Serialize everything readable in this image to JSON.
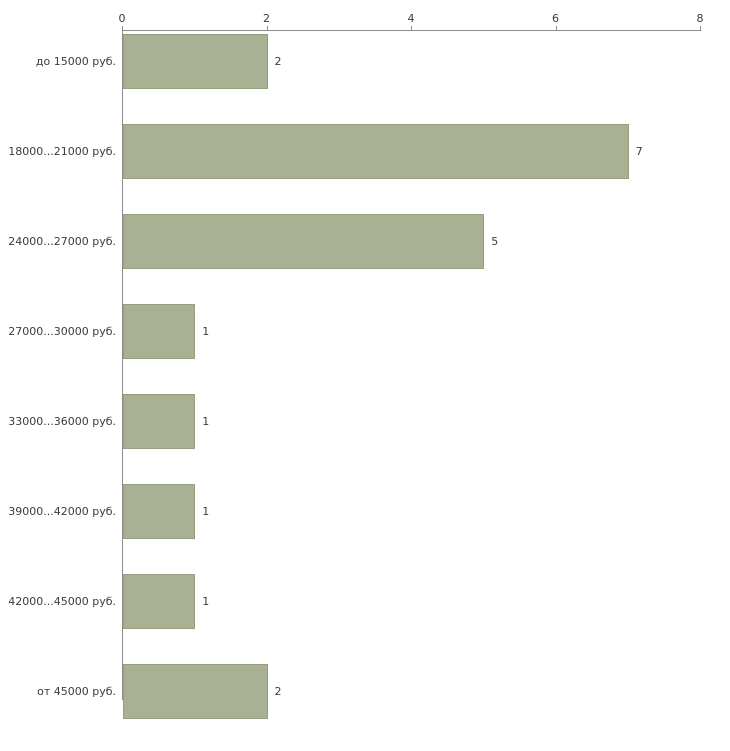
{
  "chart_data": {
    "type": "bar",
    "orientation": "horizontal",
    "title": "",
    "xlabel": "",
    "ylabel": "",
    "categories": [
      "до 15000 руб.",
      "18000...21000 руб.",
      "24000...27000 руб.",
      "27000...30000 руб.",
      "33000...36000 руб.",
      "39000...42000 руб.",
      "42000...45000 руб.",
      "от 45000 руб."
    ],
    "values": [
      2,
      7,
      5,
      1,
      1,
      1,
      1,
      2
    ],
    "value_labels": [
      "2",
      "7",
      "5",
      "1",
      "1",
      "1",
      "1",
      "2"
    ],
    "xlim": [
      0,
      8
    ],
    "xticks": [
      0,
      2,
      4,
      6,
      8
    ],
    "axis_position": "top",
    "grid": "off",
    "legend": "off",
    "bar_color": "#a9b195",
    "bar_border_color": "#96a07d",
    "axis_color": "#8c8c8c",
    "text_color": "#3c3c3c",
    "background_color": "#ffffff"
  }
}
